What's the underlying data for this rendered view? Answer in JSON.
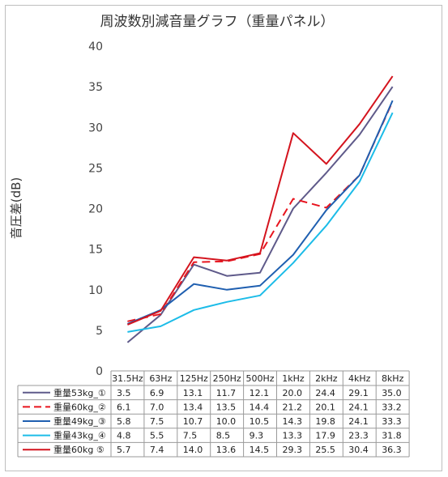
{
  "chart_data": {
    "type": "line",
    "title": "周波数別減音量グラフ（重量パネル）",
    "ylabel": "音圧差(dB)",
    "xlabel": "",
    "ylim": [
      0,
      40
    ],
    "yticks": [
      "0",
      "5",
      "10",
      "15",
      "20",
      "25",
      "30",
      "35",
      "40"
    ],
    "categories": [
      "31.5Hz",
      "63Hz",
      "125Hz",
      "250Hz",
      "500Hz",
      "1kHz",
      "2kHz",
      "4kHz",
      "8kHz"
    ],
    "grid": false,
    "legend": "data-table",
    "series": [
      {
        "name": "重量53kg_①",
        "color": "#5f5a8a",
        "dash": false,
        "values": [
          3.5,
          6.9,
          13.1,
          11.7,
          12.1,
          20.0,
          24.4,
          29.1,
          35.0
        ],
        "labels": [
          "3.5",
          "6.9",
          "13.1",
          "11.7",
          "12.1",
          "20.0",
          "24.4",
          "29.1",
          "35.0"
        ]
      },
      {
        "name": "重量60kg_②",
        "color": "#e8141e",
        "dash": true,
        "values": [
          6.1,
          7.0,
          13.4,
          13.5,
          14.4,
          21.2,
          20.1,
          24.1,
          33.2
        ],
        "labels": [
          "6.1",
          "7.0",
          "13.4",
          "13.5",
          "14.4",
          "21.2",
          "20.1",
          "24.1",
          "33.2"
        ]
      },
      {
        "name": "重量49kg_③",
        "color": "#1f5fb0",
        "dash": false,
        "values": [
          5.8,
          7.5,
          10.7,
          10.0,
          10.5,
          14.3,
          19.8,
          24.1,
          33.3
        ],
        "labels": [
          "5.8",
          "7.5",
          "10.7",
          "10.0",
          "10.5",
          "14.3",
          "19.8",
          "24.1",
          "33.3"
        ]
      },
      {
        "name": "重量43kg_④",
        "color": "#1cbce8",
        "dash": false,
        "values": [
          4.8,
          5.5,
          7.5,
          8.5,
          9.3,
          13.3,
          17.9,
          23.3,
          31.8
        ],
        "labels": [
          "4.8",
          "5.5",
          "7.5",
          "8.5",
          "9.3",
          "13.3",
          "17.9",
          "23.3",
          "31.8"
        ]
      },
      {
        "name": "重量60kg ⑤",
        "color": "#d4141e",
        "dash": false,
        "values": [
          5.7,
          7.4,
          14.0,
          13.6,
          14.5,
          29.3,
          25.5,
          30.4,
          36.3
        ],
        "labels": [
          "5.7",
          "7.4",
          "14.0",
          "13.6",
          "14.5",
          "29.3",
          "25.5",
          "30.4",
          "36.3"
        ]
      }
    ]
  }
}
